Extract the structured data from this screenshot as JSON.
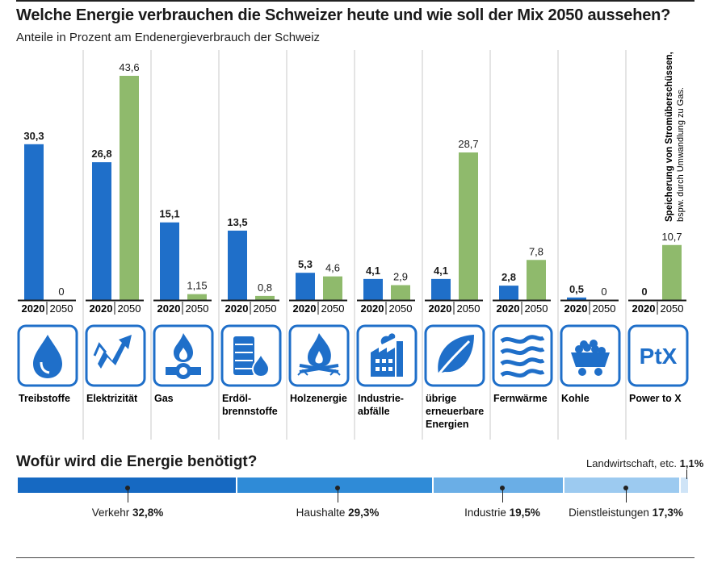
{
  "title": "Welche Energie verbrauchen die Schweizer heute und wie soll der Mix 2050 aussehen?",
  "subtitle": "Anteile in Prozent am Endenergieverbrauch der Schweiz",
  "colors": {
    "y2020": "#1f6fc9",
    "y2050": "#8fba6c",
    "icon": "#1f6fc9",
    "axis": "#1a1a1a"
  },
  "chart_data": [
    {
      "type": "bar",
      "title": "Welche Energie verbrauchen die Schweizer heute und wie soll der Mix 2050 aussehen?",
      "subtitle": "Anteile in Prozent am Endenergieverbrauch der Schweiz",
      "years": [
        "2020",
        "2050"
      ],
      "categories": [
        "Treibstoffe",
        "Elektrizität",
        "Gas",
        "Erdöl-brennstoffe",
        "Holzenergie",
        "Industrie-abfälle",
        "übrige erneuerbare Energien",
        "Fernwärme",
        "Kohle",
        "Power to X"
      ],
      "category_lines": [
        [
          "Treibstoffe"
        ],
        [
          "Elektrizität"
        ],
        [
          "Gas"
        ],
        [
          "Erdöl-",
          "brennstoffe"
        ],
        [
          "Holzenergie"
        ],
        [
          "Industrie-",
          "abfälle"
        ],
        [
          "übrige",
          "erneuerbare",
          "Energien"
        ],
        [
          "Fernwärme"
        ],
        [
          "Kohle"
        ],
        [
          "Power to X"
        ]
      ],
      "icons": [
        "drop-icon",
        "lightning-icon",
        "gas-flame-icon",
        "oil-barrel-icon",
        "wood-fire-icon",
        "factory-waste-icon",
        "leaf-icon",
        "heat-waves-icon",
        "coal-cart-icon",
        "ptx-icon"
      ],
      "series": [
        {
          "name": "2020",
          "values": [
            30.3,
            26.8,
            15.1,
            13.5,
            5.3,
            4.1,
            4.1,
            2.8,
            0.5,
            0
          ],
          "labels": [
            "30,3",
            "26,8",
            "15,1",
            "13,5",
            "5,3",
            "4,1",
            "4,1",
            "2,8",
            "0,5",
            "0"
          ]
        },
        {
          "name": "2050",
          "values": [
            0,
            43.6,
            1.15,
            0.8,
            4.6,
            2.9,
            28.7,
            7.8,
            0,
            10.7
          ],
          "labels": [
            "0",
            "43,6",
            "1,15",
            "0,8",
            "4,6",
            "2,9",
            "28,7",
            "7,8",
            "0",
            "10,7"
          ]
        }
      ],
      "annotation_ptx": [
        "Speicherung von Stromüberschüssen,",
        "bspw. durch Umwandlung zu Gas."
      ],
      "ylim": [
        0,
        43.6
      ]
    },
    {
      "type": "bar",
      "title": "Wofür wird die Energie benötigt?",
      "categories": [
        "Verkehr",
        "Haushalte",
        "Industrie",
        "Dienstleistungen",
        "Landwirtschaft, etc."
      ],
      "values": [
        32.8,
        29.3,
        19.5,
        17.3,
        1.1
      ],
      "labels": [
        "32,8%",
        "29,3%",
        "19,5%",
        "17,3%",
        "1,1%"
      ],
      "colors": [
        "#1669c2",
        "#2f8bd7",
        "#6aaee6",
        "#9ccaf0",
        "#cfe4f7"
      ]
    }
  ],
  "uses": {
    "title": "Wofür wird die Energie benötigt?",
    "items": [
      {
        "name": "Verkehr",
        "value": "32,8%"
      },
      {
        "name": "Haushalte",
        "value": "29,3%"
      },
      {
        "name": "Industrie",
        "value": "19,5%"
      },
      {
        "name": "Dienstleistungen",
        "value": "17,3%"
      },
      {
        "name": "Landwirtschaft, etc.",
        "value": "1,1%"
      }
    ]
  }
}
